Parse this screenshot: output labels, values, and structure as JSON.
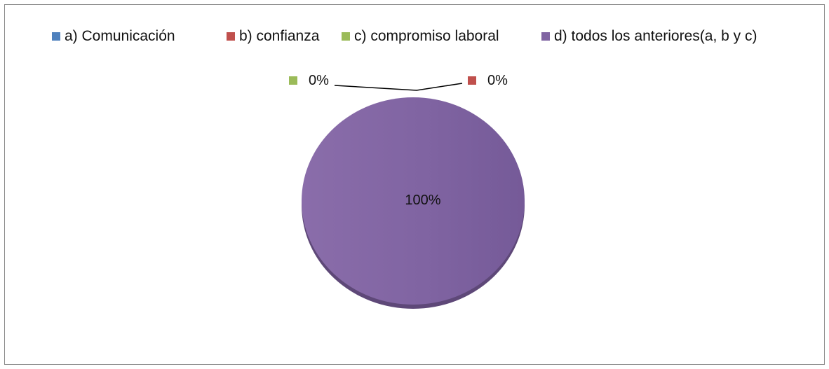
{
  "chart_data": {
    "type": "pie",
    "categories": [
      "a) Comunicación",
      "b) confianza",
      "c) compromiso laboral",
      "d) todos los anteriores(a, b y c)"
    ],
    "values": [
      0,
      0,
      0,
      100
    ],
    "colors": [
      "#4F81BD",
      "#C0504D",
      "#9BBB59",
      "#8064A2"
    ],
    "data_labels": [
      "",
      "0%",
      "0%",
      "100%"
    ],
    "legend_position": "top",
    "style": "3d-tilted"
  }
}
